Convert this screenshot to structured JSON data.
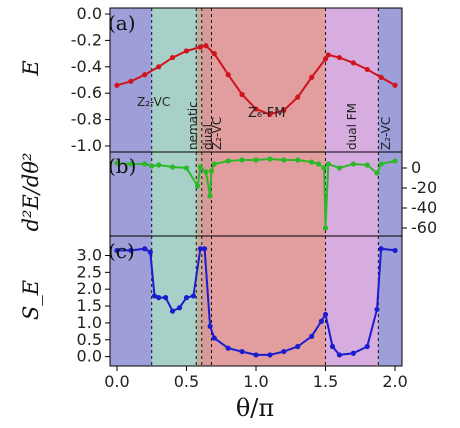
{
  "chart_data": [
    {
      "panel": "(a)",
      "type": "line",
      "ylabel": "E",
      "ylim": [
        -1.0,
        0.0
      ],
      "yticks": [
        "0.0",
        "-0.2",
        "-0.4",
        "-0.6",
        "-0.8",
        "-1.0"
      ],
      "color": "#d0141e",
      "x": [
        0.0,
        0.1,
        0.2,
        0.3,
        0.4,
        0.5,
        0.6,
        0.64,
        0.7,
        0.8,
        0.9,
        1.0,
        1.1,
        1.2,
        1.3,
        1.4,
        1.5,
        1.52,
        1.6,
        1.7,
        1.8,
        1.9,
        2.0
      ],
      "y": [
        -0.54,
        -0.51,
        -0.46,
        -0.4,
        -0.33,
        -0.28,
        -0.25,
        -0.24,
        -0.3,
        -0.46,
        -0.61,
        -0.72,
        -0.76,
        -0.73,
        -0.63,
        -0.48,
        -0.34,
        -0.31,
        -0.33,
        -0.37,
        -0.42,
        -0.48,
        -0.54
      ]
    },
    {
      "panel": "(b)",
      "type": "line",
      "ylabel": "d²E/dθ²",
      "ylim": [
        -62,
        10
      ],
      "yticks": [
        "0",
        "-20",
        "-40",
        "-60"
      ],
      "color": "#2db82a",
      "x": [
        0.0,
        0.1,
        0.2,
        0.25,
        0.3,
        0.4,
        0.5,
        0.58,
        0.6,
        0.64,
        0.67,
        0.68,
        0.7,
        0.8,
        0.9,
        1.0,
        1.1,
        1.2,
        1.3,
        1.4,
        1.45,
        1.49,
        1.5,
        1.52,
        1.6,
        1.7,
        1.8,
        1.87,
        1.9,
        2.0
      ],
      "y": [
        5,
        4,
        4,
        2,
        3,
        1,
        0,
        -18,
        1,
        -4,
        -28,
        -3,
        4,
        7,
        8,
        8,
        9,
        8,
        8,
        6,
        4,
        0,
        -60,
        4,
        0,
        4,
        3,
        -5,
        4,
        7
      ]
    },
    {
      "panel": "(c)",
      "type": "line",
      "ylabel": "S_E",
      "ylim": [
        -0.1,
        3.4
      ],
      "yticks": [
        "3.0",
        "2.5",
        "2.0",
        "1.5",
        "1.0",
        "0.5",
        "0.0"
      ],
      "color": "#1d1dd0",
      "x": [
        0.0,
        0.1,
        0.2,
        0.24,
        0.27,
        0.3,
        0.35,
        0.4,
        0.45,
        0.5,
        0.55,
        0.6,
        0.63,
        0.67,
        0.7,
        0.8,
        0.9,
        1.0,
        1.1,
        1.2,
        1.3,
        1.4,
        1.47,
        1.5,
        1.55,
        1.6,
        1.7,
        1.8,
        1.87,
        1.9,
        2.0
      ],
      "y": [
        3.15,
        3.15,
        3.2,
        3.1,
        1.8,
        1.75,
        1.75,
        1.35,
        1.45,
        1.75,
        1.8,
        3.2,
        3.2,
        0.9,
        0.55,
        0.25,
        0.15,
        0.05,
        0.05,
        0.15,
        0.3,
        0.6,
        1.05,
        1.25,
        0.3,
        0.05,
        0.1,
        0.3,
        1.4,
        3.2,
        3.15
      ]
    }
  ],
  "x_axis": {
    "xlabel": "θ/π",
    "xlim": [
      -0.05,
      2.05
    ],
    "xticks": [
      "0.0",
      "0.5",
      "1.0",
      "1.5",
      "2.0"
    ]
  },
  "regions": [
    {
      "from": -0.05,
      "to": 0.25,
      "color": "#9e9ed8",
      "label": "Z₂-VC"
    },
    {
      "from": 0.25,
      "to": 0.57,
      "color": "#a7d1c8",
      "label": "nematic"
    },
    {
      "from": 0.57,
      "to": 0.61,
      "color": "#bfae9c",
      "label": "dual"
    },
    {
      "from": 0.61,
      "to": 0.68,
      "color": "#d79a9a",
      "label": "Z₂-VC"
    },
    {
      "from": 0.68,
      "to": 1.5,
      "color": "#e29e9e",
      "label": "Z₆-FM"
    },
    {
      "from": 1.5,
      "to": 1.88,
      "color": "#d7ade0",
      "label": "dual FM"
    },
    {
      "from": 1.88,
      "to": 2.05,
      "color": "#9e9ed8",
      "label": "Z₂-VC"
    }
  ],
  "boundaries": [
    0.25,
    0.57,
    0.61,
    0.68,
    1.5,
    1.88
  ]
}
